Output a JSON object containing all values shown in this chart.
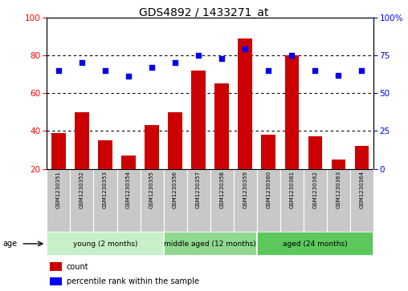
{
  "title": "GDS4892 / 1433271_at",
  "samples": [
    "GSM1230351",
    "GSM1230352",
    "GSM1230353",
    "GSM1230354",
    "GSM1230355",
    "GSM1230356",
    "GSM1230357",
    "GSM1230358",
    "GSM1230359",
    "GSM1230360",
    "GSM1230361",
    "GSM1230362",
    "GSM1230363",
    "GSM1230364"
  ],
  "counts": [
    39,
    50,
    35,
    27,
    43,
    50,
    72,
    65,
    89,
    38,
    80,
    37,
    25,
    32
  ],
  "percentiles": [
    65,
    70,
    65,
    61,
    67,
    70,
    75,
    73,
    79,
    65,
    75,
    65,
    62,
    65
  ],
  "groups": [
    {
      "label": "young (2 months)",
      "start": 0,
      "end": 5
    },
    {
      "label": "middle aged (12 months)",
      "start": 5,
      "end": 9
    },
    {
      "label": "aged (24 months)",
      "start": 9,
      "end": 14
    }
  ],
  "group_colors": [
    "#C8F0C8",
    "#90D890",
    "#5CC85C"
  ],
  "ylim_left": [
    20,
    100
  ],
  "ylim_right": [
    0,
    100
  ],
  "bar_color": "#CC0000",
  "dot_color": "#0000EE",
  "label_bg": "#C8C8C8"
}
